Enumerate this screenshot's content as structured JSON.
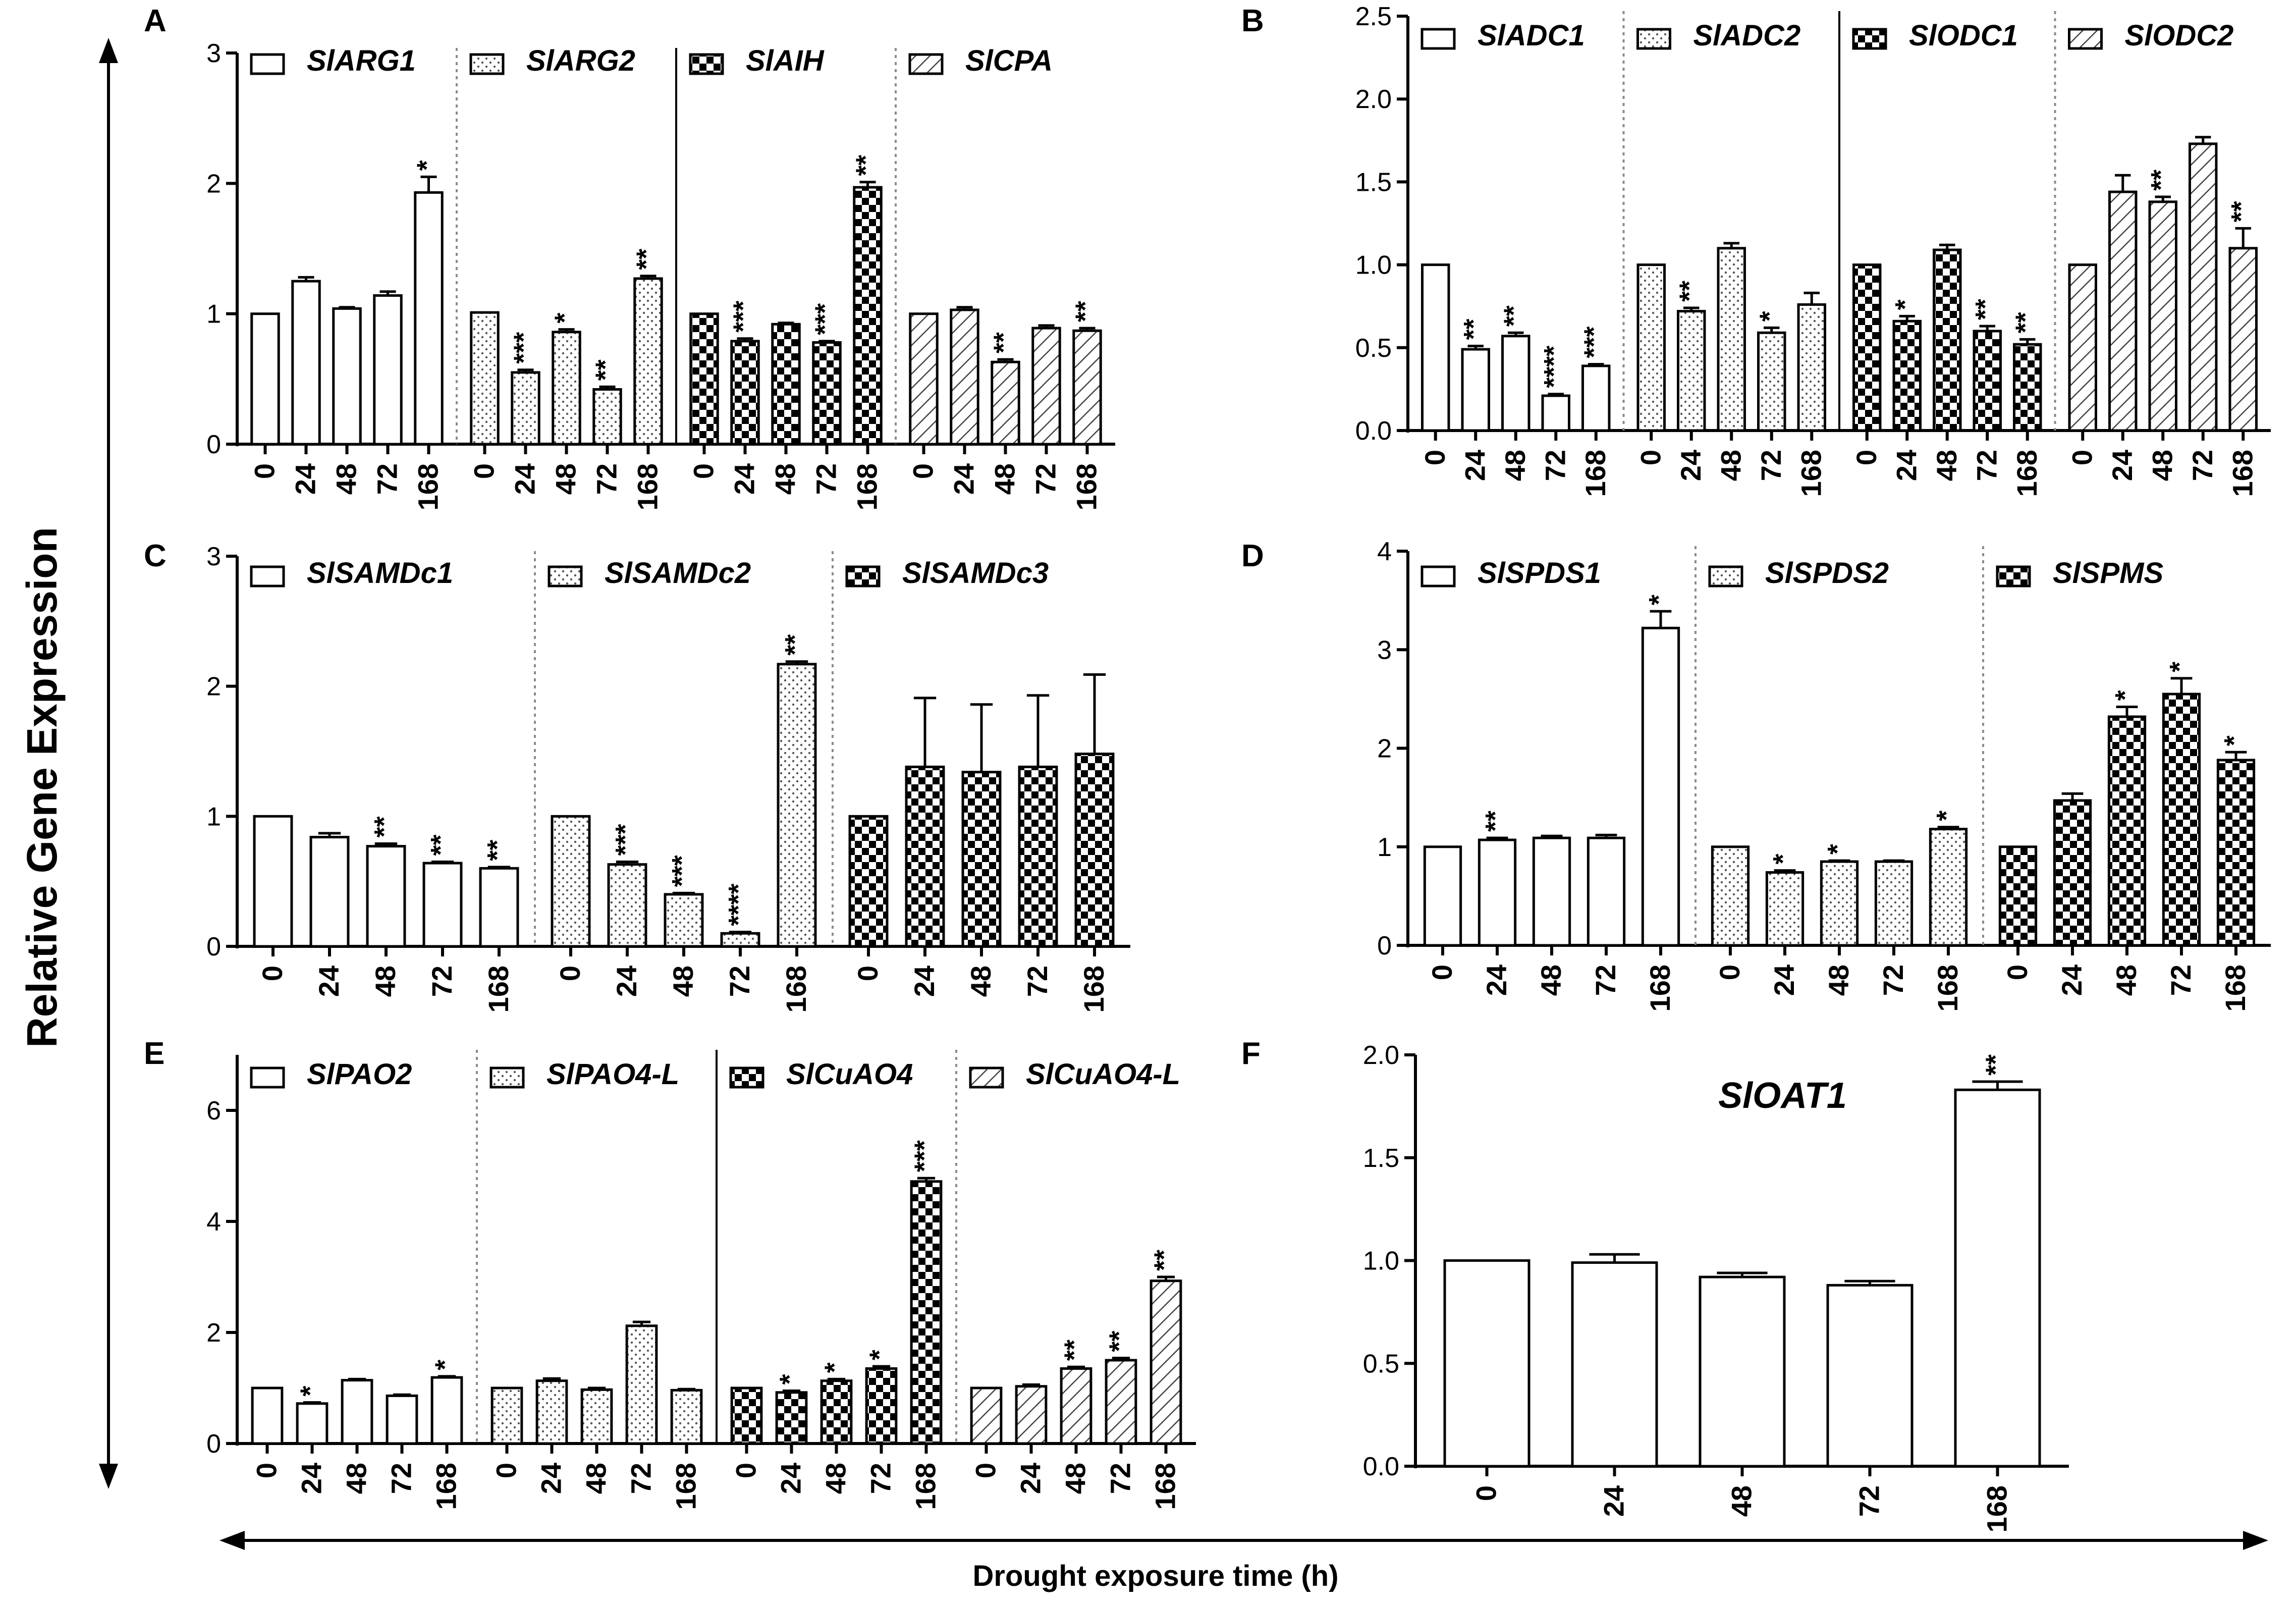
{
  "figure": {
    "ylabel": "Relative Gene Expression",
    "xlabel": "Drought  exposure time (h)"
  },
  "chart_data": [
    {
      "id": "A",
      "type": "bar",
      "ylim": [
        0,
        3
      ],
      "yticks": [
        "0",
        "1",
        "2",
        "3"
      ],
      "categories": [
        "0",
        "24",
        "48",
        "72",
        "168"
      ],
      "groups": [
        {
          "name": "SlARG1",
          "pattern": "open",
          "values": [
            1.0,
            1.25,
            1.04,
            1.14,
            1.93
          ],
          "errors": [
            0,
            0.03,
            0.01,
            0.03,
            0.12
          ],
          "stars": [
            "",
            "",
            "",
            "",
            "*"
          ]
        },
        {
          "name": "SlARG2",
          "pattern": "dots",
          "values": [
            1.01,
            0.55,
            0.86,
            0.42,
            1.27
          ],
          "errors": [
            0,
            0.02,
            0.02,
            0.02,
            0.02
          ],
          "stars": [
            "",
            "***",
            "*",
            "**",
            "**"
          ]
        },
        {
          "name": "SlAIH",
          "pattern": "check",
          "values": [
            1.0,
            0.79,
            0.92,
            0.78,
            1.97
          ],
          "errors": [
            0,
            0.02,
            0.01,
            0.01,
            0.04
          ],
          "stars": [
            "",
            "***",
            "",
            "***",
            "**"
          ]
        },
        {
          "name": "SlCPA",
          "pattern": "hatch",
          "values": [
            1.0,
            1.03,
            0.63,
            0.89,
            0.87
          ],
          "errors": [
            0,
            0.02,
            0.02,
            0.02,
            0.02
          ],
          "stars": [
            "",
            "",
            "**",
            "",
            "**"
          ]
        }
      ],
      "separators": [
        "dot",
        "solid",
        "dot"
      ]
    },
    {
      "id": "B",
      "type": "bar",
      "ylim": [
        0,
        2.5
      ],
      "yticks": [
        "0.0",
        "0.5",
        "1.0",
        "1.5",
        "2.0",
        "2.5"
      ],
      "categories": [
        "0",
        "24",
        "48",
        "72",
        "168"
      ],
      "groups": [
        {
          "name": "SlADC1",
          "pattern": "open",
          "values": [
            1.0,
            0.49,
            0.57,
            0.21,
            0.39
          ],
          "errors": [
            0,
            0.02,
            0.02,
            0.01,
            0.01
          ],
          "stars": [
            "",
            "**",
            "**",
            "****",
            "***"
          ]
        },
        {
          "name": "SlADC2",
          "pattern": "dots",
          "values": [
            1.0,
            0.72,
            1.1,
            0.59,
            0.76
          ],
          "errors": [
            0,
            0.02,
            0.03,
            0.03,
            0.07
          ],
          "stars": [
            "",
            "**",
            "",
            "*",
            ""
          ]
        },
        {
          "name": "SlODC1",
          "pattern": "check",
          "values": [
            1.0,
            0.66,
            1.09,
            0.6,
            0.52
          ],
          "errors": [
            0,
            0.03,
            0.03,
            0.03,
            0.03
          ],
          "stars": [
            "",
            "*",
            "",
            "**",
            "**"
          ]
        },
        {
          "name": "SlODC2",
          "pattern": "hatch",
          "values": [
            1.0,
            1.44,
            1.38,
            1.73,
            1.1
          ],
          "errors": [
            0,
            0.1,
            0.03,
            0.04,
            0.12
          ],
          "stars": [
            "",
            "",
            "**",
            "",
            "**"
          ]
        }
      ],
      "separators": [
        "dot",
        "solid",
        "dot"
      ]
    },
    {
      "id": "C",
      "type": "bar",
      "ylim": [
        0,
        3
      ],
      "yticks": [
        "0",
        "1",
        "2",
        "3"
      ],
      "categories": [
        "0",
        "24",
        "48",
        "72",
        "168"
      ],
      "groups": [
        {
          "name": "SlSAMDc1",
          "pattern": "open",
          "values": [
            1.0,
            0.84,
            0.77,
            0.64,
            0.6
          ],
          "errors": [
            0,
            0.03,
            0.02,
            0.01,
            0.01
          ],
          "stars": [
            "",
            "",
            "**",
            "**",
            "**"
          ]
        },
        {
          "name": "SlSAMDc2",
          "pattern": "dots",
          "values": [
            1.0,
            0.63,
            0.4,
            0.1,
            2.17
          ],
          "errors": [
            0,
            0.02,
            0.01,
            0.01,
            0.02
          ],
          "stars": [
            "",
            "***",
            "***",
            "****",
            "**"
          ]
        },
        {
          "name": "SlSAMDc3",
          "pattern": "check",
          "values": [
            1.0,
            1.38,
            1.34,
            1.38,
            1.48
          ],
          "errors": [
            0,
            0.53,
            0.52,
            0.55,
            0.61
          ],
          "stars": [
            "",
            "",
            "",
            "",
            ""
          ]
        }
      ],
      "separators": [
        "dot",
        "dot"
      ]
    },
    {
      "id": "D",
      "type": "bar",
      "ylim": [
        0,
        4
      ],
      "yticks": [
        "0",
        "1",
        "2",
        "3",
        "4"
      ],
      "categories": [
        "0",
        "24",
        "48",
        "72",
        "168"
      ],
      "groups": [
        {
          "name": "SlSPDS1",
          "pattern": "open",
          "values": [
            1.0,
            1.07,
            1.09,
            1.09,
            3.22
          ],
          "errors": [
            0,
            0.02,
            0.02,
            0.03,
            0.17
          ],
          "stars": [
            "",
            "**",
            "",
            "",
            "*"
          ]
        },
        {
          "name": "SlSPDS2",
          "pattern": "dots",
          "values": [
            1.0,
            0.74,
            0.85,
            0.85,
            1.18
          ],
          "errors": [
            0,
            0.02,
            0.01,
            0.01,
            0.02
          ],
          "stars": [
            "",
            "*",
            "*",
            "",
            "*"
          ]
        },
        {
          "name": "SlSPMS",
          "pattern": "check",
          "values": [
            1.0,
            1.47,
            2.32,
            2.55,
            1.88
          ],
          "errors": [
            0,
            0.07,
            0.1,
            0.16,
            0.08
          ],
          "stars": [
            "",
            "",
            "*",
            "*",
            "*"
          ]
        }
      ],
      "separators": [
        "dot",
        "dot"
      ]
    },
    {
      "id": "E",
      "type": "bar",
      "ylim": [
        0,
        7
      ],
      "yticks": [
        "0",
        "2",
        "4",
        "6"
      ],
      "categories": [
        "0",
        "24",
        "48",
        "72",
        "168"
      ],
      "groups": [
        {
          "name": "SlPAO2",
          "pattern": "open",
          "values": [
            1.0,
            0.72,
            1.14,
            0.86,
            1.19
          ],
          "errors": [
            0,
            0.02,
            0.02,
            0.02,
            0.02
          ],
          "stars": [
            "",
            "*",
            "",
            "",
            "*"
          ]
        },
        {
          "name": "SlPAO4-L",
          "pattern": "dots",
          "values": [
            1.0,
            1.13,
            0.97,
            2.12,
            0.96
          ],
          "errors": [
            0,
            0.04,
            0.03,
            0.07,
            0.02
          ],
          "stars": [
            "",
            "",
            "",
            "",
            ""
          ]
        },
        {
          "name": "SlCuAO4",
          "pattern": "check",
          "values": [
            1.0,
            0.92,
            1.13,
            1.35,
            4.72
          ],
          "errors": [
            0,
            0.03,
            0.03,
            0.04,
            0.06
          ],
          "stars": [
            "",
            "*",
            "*",
            "*",
            "***"
          ]
        },
        {
          "name": "SlCuAO4-L",
          "pattern": "hatch",
          "values": [
            1.0,
            1.03,
            1.35,
            1.5,
            2.93
          ],
          "errors": [
            0,
            0.03,
            0.03,
            0.04,
            0.07
          ],
          "stars": [
            "",
            "",
            "**",
            "**",
            "**"
          ]
        }
      ],
      "separators": [
        "dot",
        "solid",
        "dot"
      ]
    },
    {
      "id": "F",
      "type": "bar",
      "ylim": [
        0,
        2
      ],
      "yticks": [
        "0.0",
        "0.5",
        "1.0",
        "1.5",
        "2.0"
      ],
      "title": "SlOAT1",
      "categories": [
        "0",
        "24",
        "48",
        "72",
        "168"
      ],
      "groups": [
        {
          "name": "SlOAT1",
          "pattern": "open",
          "values": [
            1.0,
            0.99,
            0.92,
            0.88,
            1.83
          ],
          "errors": [
            0,
            0.04,
            0.02,
            0.02,
            0.04
          ],
          "stars": [
            "",
            "",
            "",
            "",
            "**"
          ]
        }
      ],
      "separators": []
    }
  ]
}
